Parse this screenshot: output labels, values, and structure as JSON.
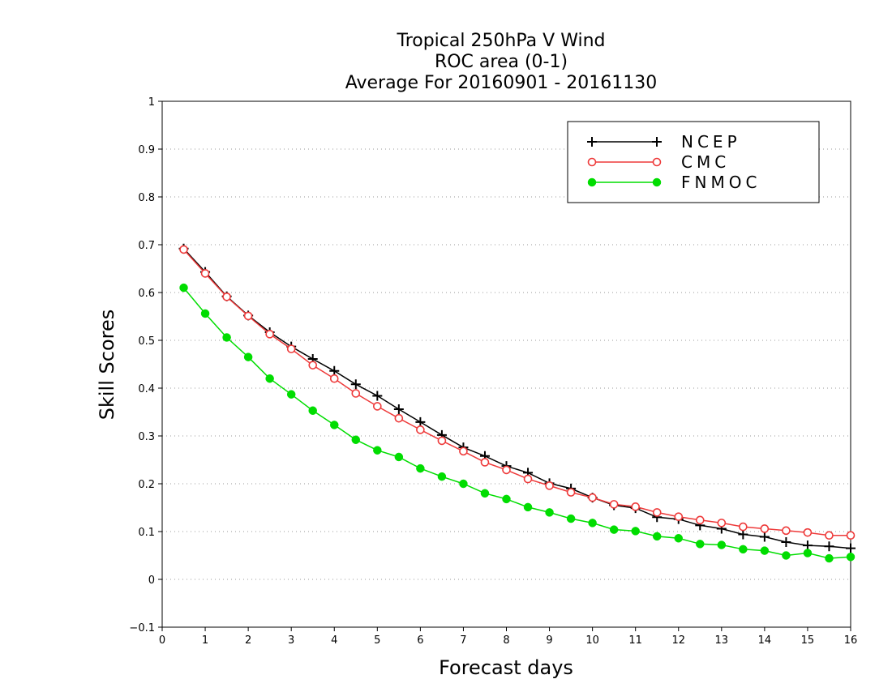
{
  "chart_data": {
    "type": "line",
    "title": [
      "Tropical 250hPa V Wind",
      "ROC area (0-1)",
      "Average For 20160901 - 20161130"
    ],
    "xlabel": "Forecast days",
    "ylabel": "Skill Scores",
    "xlim": [
      0,
      16
    ],
    "ylim": [
      -0.1,
      1
    ],
    "xticks": [
      "0",
      "1",
      "2",
      "3",
      "4",
      "5",
      "6",
      "7",
      "8",
      "9",
      "10",
      "11",
      "12",
      "13",
      "14",
      "15",
      "16"
    ],
    "yticks": [
      "−0.1",
      "0",
      "0.1",
      "0.2",
      "0.3",
      "0.4",
      "0.5",
      "0.6",
      "0.7",
      "0.8",
      "0.9",
      "1"
    ],
    "grid": "horizontal dotted",
    "legend_position": "top-right",
    "x": [
      0.5,
      1,
      1.5,
      2,
      2.5,
      3,
      3.5,
      4,
      4.5,
      5,
      5.5,
      6,
      6.5,
      7,
      7.5,
      8,
      8.5,
      9,
      9.5,
      10,
      10.5,
      11,
      11.5,
      12,
      12.5,
      13,
      13.5,
      14,
      14.5,
      15,
      15.5,
      16
    ],
    "series": [
      {
        "name": "NCEP",
        "color": "#000000",
        "marker": "plus",
        "values": [
          0.692,
          0.643,
          0.592,
          0.552,
          0.517,
          0.487,
          0.461,
          0.436,
          0.408,
          0.384,
          0.356,
          0.329,
          0.302,
          0.276,
          0.258,
          0.237,
          0.223,
          0.201,
          0.19,
          0.171,
          0.155,
          0.149,
          0.13,
          0.126,
          0.113,
          0.106,
          0.094,
          0.089,
          0.078,
          0.071,
          0.069,
          0.065
        ]
      },
      {
        "name": "CMC",
        "color": "#ee3a3a",
        "marker": "open-circle",
        "values": [
          0.69,
          0.64,
          0.591,
          0.551,
          0.513,
          0.482,
          0.448,
          0.42,
          0.389,
          0.362,
          0.337,
          0.313,
          0.29,
          0.268,
          0.245,
          0.229,
          0.21,
          0.196,
          0.182,
          0.171,
          0.157,
          0.152,
          0.14,
          0.131,
          0.124,
          0.118,
          0.11,
          0.106,
          0.102,
          0.098,
          0.092,
          0.092
        ]
      },
      {
        "name": "FNMOC",
        "color": "#00dd00",
        "marker": "filled-circle",
        "values": [
          0.61,
          0.556,
          0.506,
          0.465,
          0.42,
          0.387,
          0.353,
          0.323,
          0.292,
          0.27,
          0.256,
          0.232,
          0.215,
          0.2,
          0.18,
          0.168,
          0.151,
          0.14,
          0.127,
          0.118,
          0.104,
          0.101,
          0.09,
          0.086,
          0.074,
          0.072,
          0.063,
          0.06,
          0.05,
          0.055,
          0.044,
          0.047
        ]
      }
    ]
  }
}
